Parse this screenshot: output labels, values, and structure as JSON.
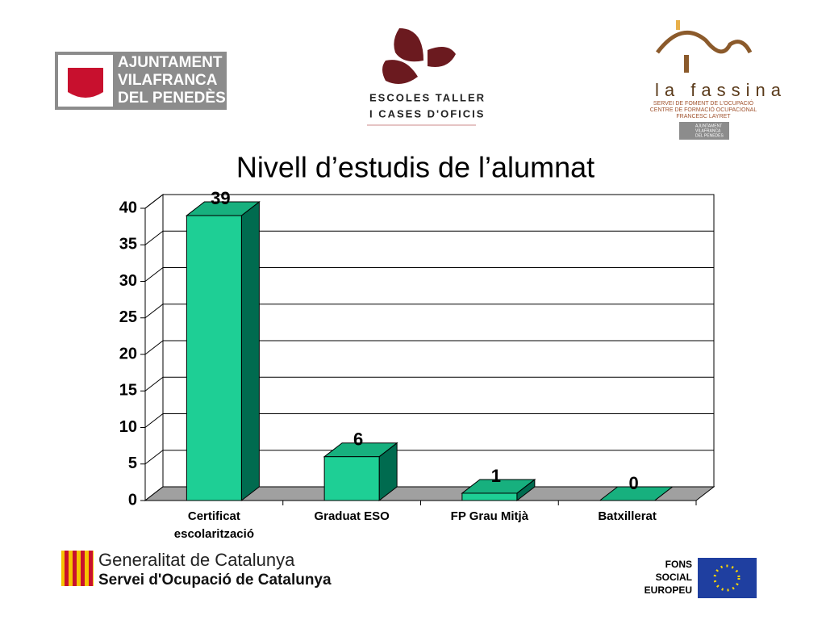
{
  "header": {
    "ajuntament": [
      "AJUNTAMENT",
      "VILAFRANCA",
      "DEL PENEDÈS"
    ],
    "escoles": [
      "ESCOLES TALLER",
      "I CASES D'OFICIS"
    ],
    "fassina": {
      "name": "la fassina",
      "lines": [
        "SERVEI DE FOMENT DE L'OCUPACIÓ",
        "CENTRE DE FORMACIÓ OCUPACIONAL",
        "FRANCESC LAYRET"
      ],
      "badge": [
        "AJUNTAMENT",
        "VILAFRANCA",
        "DEL PENEDÈS"
      ]
    }
  },
  "footer": {
    "generalitat": "Generalitat de Catalunya",
    "servei": "Servei d'Ocupació de Catalunya",
    "fons": [
      "FONS",
      "SOCIAL",
      "EUROPEU"
    ]
  },
  "chart_data": {
    "type": "bar3d",
    "title": "Nivell d’estudis de l’alumnat",
    "categories": [
      "Certificat escolarització",
      "Graduat ESO",
      "FP Grau Mitjà",
      "Batxillerat"
    ],
    "values": [
      39,
      6,
      1,
      0
    ],
    "color": "#1ecf95",
    "side_color": "#006b4f",
    "top_color": "#17b07e",
    "floor_color": "#a0a0a0",
    "ylim": [
      0,
      40
    ],
    "yticks": [
      0,
      5,
      10,
      15,
      20,
      25,
      30,
      35,
      40
    ],
    "grid": true
  }
}
